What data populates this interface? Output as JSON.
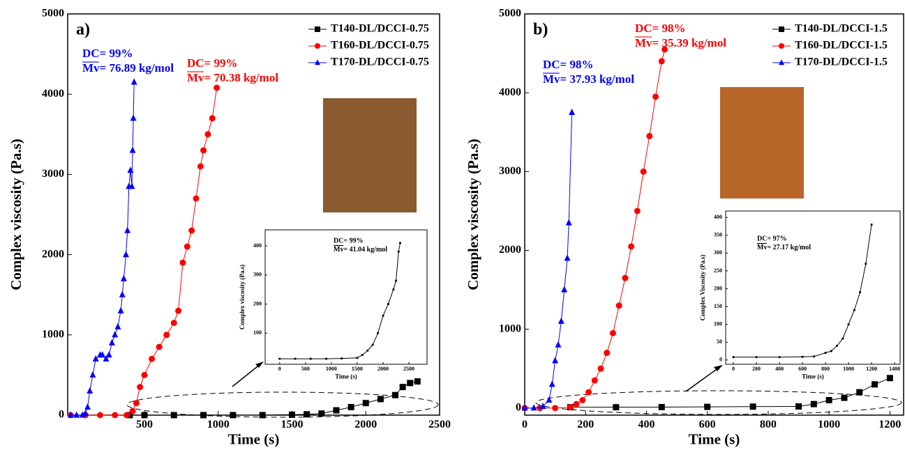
{
  "chart_data": [
    {
      "type": "line",
      "panel_label": "a)",
      "x_label": "Time (s)",
      "y_label": "Complex viscosity (Pa.s)",
      "xlim": [
        -20,
        2500
      ],
      "xticks": [
        500,
        1000,
        1500,
        2000,
        2500
      ],
      "ylim": [
        0,
        5000
      ],
      "yticks": [
        0,
        1000,
        2000,
        3000,
        4000,
        5000
      ],
      "legend": "upper right",
      "series": [
        {
          "name": "T140-DL/DCCI-0.75",
          "color": "#000000",
          "marker": "square",
          "x": [
            400,
            500,
            700,
            900,
            1100,
            1300,
            1500,
            1600,
            1700,
            1800,
            1900,
            2000,
            2100,
            2200,
            2250,
            2300,
            2350
          ],
          "values": [
            0,
            0,
            0,
            0,
            0,
            0,
            5,
            10,
            20,
            60,
            100,
            150,
            200,
            250,
            350,
            400,
            420
          ]
        },
        {
          "name": "T160-DL/DCCI-0.75",
          "color": "#ff0000",
          "marker": "circle",
          "annotation": [
            "DC= 99%",
            "Mv= 70.38 kg/mol"
          ],
          "x": [
            0,
            100,
            200,
            300,
            380,
            420,
            445,
            470,
            500,
            550,
            600,
            650,
            700,
            730,
            760,
            790,
            820,
            850,
            880,
            900,
            930,
            960,
            990
          ],
          "values": [
            0,
            0,
            0,
            0,
            0,
            50,
            150,
            350,
            500,
            700,
            850,
            1000,
            1150,
            1300,
            1900,
            2100,
            2300,
            2700,
            3100,
            3300,
            3500,
            3700,
            4080
          ]
        },
        {
          "name": "T170-DL/DCCI-0.75",
          "color": "#0000ff",
          "marker": "triangle",
          "annotation": [
            "DC= 99%",
            "Mv= 76.89 kg/mol"
          ],
          "x": [
            0,
            40,
            80,
            100,
            115,
            130,
            150,
            170,
            200,
            215,
            240,
            260,
            280,
            300,
            320,
            340,
            350,
            360,
            375,
            385,
            395,
            405,
            415,
            420,
            425,
            430
          ],
          "values": [
            0,
            0,
            0,
            20,
            100,
            300,
            500,
            700,
            750,
            750,
            700,
            750,
            900,
            1000,
            1100,
            1300,
            1500,
            1700,
            2000,
            2300,
            2850,
            3050,
            2850,
            3300,
            3700,
            4150
          ]
        }
      ]
    },
    {
      "type": "line",
      "x_label": "Time (s)",
      "y_label": "Complex viscosity (Pa.s)",
      "xlim": [
        -280,
        2850
      ],
      "xticks": [
        0,
        500,
        1000,
        1500,
        2000,
        2500
      ],
      "ylim": [
        -7,
        455
      ],
      "yticks": [
        100,
        200,
        300,
        400
      ],
      "series": [
        {
          "name": "T140-DL/DCCI-0.75",
          "color": "#000000",
          "marker": "square",
          "annotation": [
            "DC= 99%",
            "Mv= 41.04 kg/mol"
          ],
          "x": [
            0,
            300,
            600,
            900,
            1200,
            1500,
            1600,
            1700,
            1800,
            1900,
            2000,
            2100,
            2200,
            2250,
            2300,
            2330
          ],
          "values": [
            12,
            12,
            12,
            12,
            13,
            15,
            25,
            40,
            60,
            100,
            160,
            200,
            250,
            280,
            380,
            410
          ]
        }
      ]
    },
    {
      "type": "line",
      "panel_label": "b)",
      "x_label": "Time (s)",
      "y_label": "Complex viscosity (Pa.s)",
      "xlim": [
        0,
        1245
      ],
      "xticks": [
        0,
        200,
        400,
        600,
        800,
        1000,
        1200
      ],
      "ylim": [
        -90,
        5000
      ],
      "yticks": [
        0,
        1000,
        2000,
        3000,
        4000,
        5000
      ],
      "legend": "upper right",
      "series": [
        {
          "name": "T140-DL/DCCI-1.5",
          "color": "#000000",
          "marker": "square",
          "x": [
            150,
            300,
            450,
            600,
            750,
            900,
            950,
            1000,
            1050,
            1100,
            1150,
            1200
          ],
          "values": [
            10,
            10,
            12,
            15,
            18,
            20,
            50,
            100,
            130,
            200,
            300,
            380
          ]
        },
        {
          "name": "T160-DL/DCCI-1.5",
          "color": "#ff0000",
          "marker": "circle",
          "annotation": [
            "DC= 98%",
            "Mv= 35.39 kg/mol"
          ],
          "x": [
            0,
            50,
            100,
            150,
            170,
            190,
            210,
            230,
            250,
            270,
            290,
            310,
            330,
            350,
            370,
            390,
            410,
            430,
            450,
            460
          ],
          "values": [
            0,
            0,
            0,
            10,
            50,
            100,
            200,
            350,
            500,
            700,
            950,
            1300,
            1650,
            2050,
            2500,
            3000,
            3450,
            3950,
            4400,
            4550
          ]
        },
        {
          "name": "T170-DL/DCCI-1.5",
          "color": "#0000ff",
          "marker": "triangle",
          "annotation": [
            "DC= 98%",
            "Mv= 37.93 kg/mol"
          ],
          "x": [
            0,
            30,
            60,
            80,
            90,
            100,
            110,
            120,
            130,
            140,
            145,
            155
          ],
          "values": [
            0,
            0,
            20,
            100,
            300,
            600,
            800,
            1100,
            1500,
            1900,
            2350,
            3750
          ]
        }
      ]
    },
    {
      "type": "line",
      "x_label": "Time (s)",
      "y_label": "Complex Viscosity (Pa.s)",
      "xlim": [
        -67,
        1448
      ],
      "xticks": [
        0,
        200,
        400,
        600,
        800,
        1000,
        1200,
        1400
      ],
      "ylim": [
        -12,
        418
      ],
      "yticks": [
        0,
        50,
        100,
        150,
        200,
        250,
        300,
        350,
        400
      ],
      "series": [
        {
          "name": "T140-DL/DCCI-1.5",
          "color": "#000000",
          "marker": "square",
          "annotation": [
            "DC= 97%",
            "Mv= 27.17 kg/mol"
          ],
          "x": [
            0,
            200,
            400,
            600,
            700,
            800,
            850,
            900,
            950,
            1000,
            1050,
            1100,
            1150,
            1200
          ],
          "values": [
            8,
            8,
            8,
            9,
            10,
            20,
            25,
            40,
            60,
            100,
            140,
            190,
            270,
            380
          ]
        }
      ]
    }
  ]
}
